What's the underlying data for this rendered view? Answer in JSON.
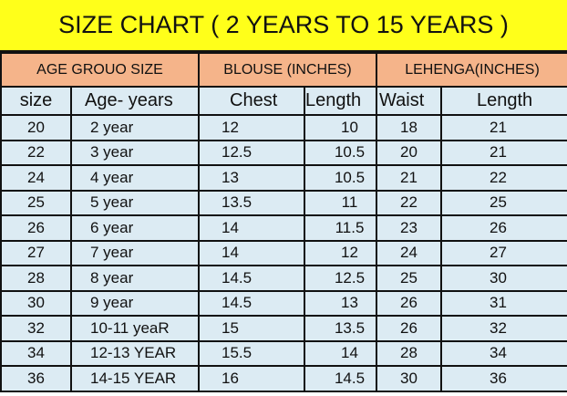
{
  "title": "SIZE CHART ( 2 YEARS TO 15 YEARS )",
  "colors": {
    "title_bg": "#ffff1a",
    "group_header_bg": "#f5b48a",
    "row_bg": "#dcebf3"
  },
  "group_headers": [
    "AGE GROUO SIZE",
    "BLOUSE (INCHES)",
    "LEHENGA(INCHES)"
  ],
  "columns": [
    "size",
    "Age-  years",
    "Chest",
    "Length",
    "Waist",
    "Length"
  ],
  "rows": [
    [
      "20",
      "2 year",
      "12",
      "10",
      "18",
      "21"
    ],
    [
      "22",
      "3 year",
      "12.5",
      "10.5",
      "20",
      "21"
    ],
    [
      "24",
      "4 year",
      "13",
      "10.5",
      "21",
      "22"
    ],
    [
      "25",
      "5 year",
      "13.5",
      "11",
      "22",
      "25"
    ],
    [
      "26",
      "6 year",
      "14",
      "11.5",
      "23",
      "26"
    ],
    [
      "27",
      "7 year",
      "14",
      "12",
      "24",
      "27"
    ],
    [
      "28",
      "8 year",
      "14.5",
      "12.5",
      "25",
      "30"
    ],
    [
      "30",
      "9 year",
      "14.5",
      "13",
      "26",
      "31"
    ],
    [
      "32",
      "10-11 yeaR",
      "15",
      "13.5",
      "26",
      "32"
    ],
    [
      "34",
      "12-13 YEAR",
      "15.5",
      "14",
      "28",
      "34"
    ],
    [
      "36",
      "14-15 YEAR",
      "16",
      "14.5",
      "30",
      "36"
    ]
  ]
}
